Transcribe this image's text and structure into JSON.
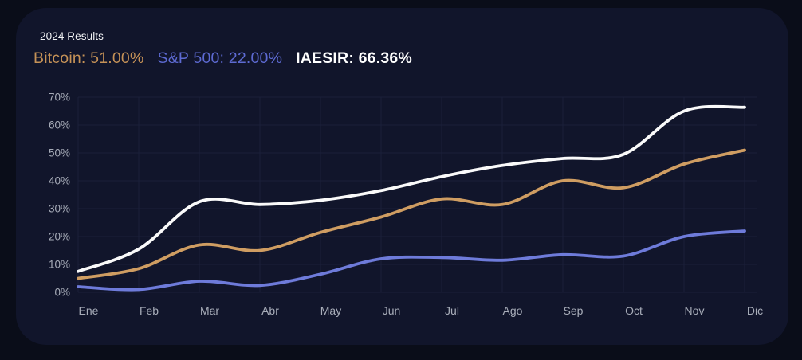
{
  "header": {
    "title": "2024 Results",
    "legend": [
      {
        "name": "Bitcoin",
        "label": "Bitcoin: 51.00%",
        "value": "51.00%",
        "color": "#c69257"
      },
      {
        "name": "S&P 500",
        "label": "S&P 500: 22.00%",
        "value": "22.00%",
        "color": "#5d6ad2"
      },
      {
        "name": "IAESIR",
        "label": "IAESIR: 66.36%",
        "value": "66.36%",
        "color": "#ffffff"
      }
    ]
  },
  "chart_data": {
    "type": "line",
    "title": "2024 Results",
    "categories": [
      "Ene",
      "Feb",
      "Mar",
      "Abr",
      "May",
      "Jun",
      "Jul",
      "Ago",
      "Sep",
      "Oct",
      "Nov",
      "Dic"
    ],
    "series": [
      {
        "name": "S&P 500",
        "color": "#6e7bda",
        "final_value": 22.0,
        "final_label": "22.00%",
        "values": [
          2,
          1,
          4,
          2.5,
          6.5,
          12,
          12.5,
          11.5,
          13.5,
          13,
          20,
          22
        ]
      },
      {
        "name": "Bitcoin",
        "color": "#cf9d62",
        "final_value": 51.0,
        "final_label": "51.00%",
        "values": [
          5,
          8.5,
          17,
          15,
          21.5,
          27,
          33.5,
          31.5,
          40,
          37.5,
          46,
          51
        ]
      },
      {
        "name": "IAESIR",
        "color": "#fafafa",
        "final_value": 66.36,
        "final_label": "66.36%",
        "values": [
          7.5,
          15.5,
          32.5,
          31.5,
          33,
          36.5,
          41.5,
          45.5,
          48,
          49.5,
          65,
          66.36
        ]
      }
    ],
    "xlabel": "",
    "ylabel": "",
    "y_ticks": [
      0,
      10,
      20,
      30,
      40,
      50,
      60,
      70
    ],
    "y_tick_labels": [
      "0%",
      "10%",
      "20%",
      "30%",
      "40%",
      "50%",
      "60%",
      "70%"
    ],
    "ylim": [
      0,
      70
    ],
    "grid": true,
    "smooth": true,
    "legend_position": "top-left"
  },
  "colors": {
    "page_background": "#0a0d19",
    "panel_background": "#11152b",
    "gridline": "#1b2039",
    "axis_label": "#a8adb9",
    "title_text": "#f2f3f5"
  }
}
